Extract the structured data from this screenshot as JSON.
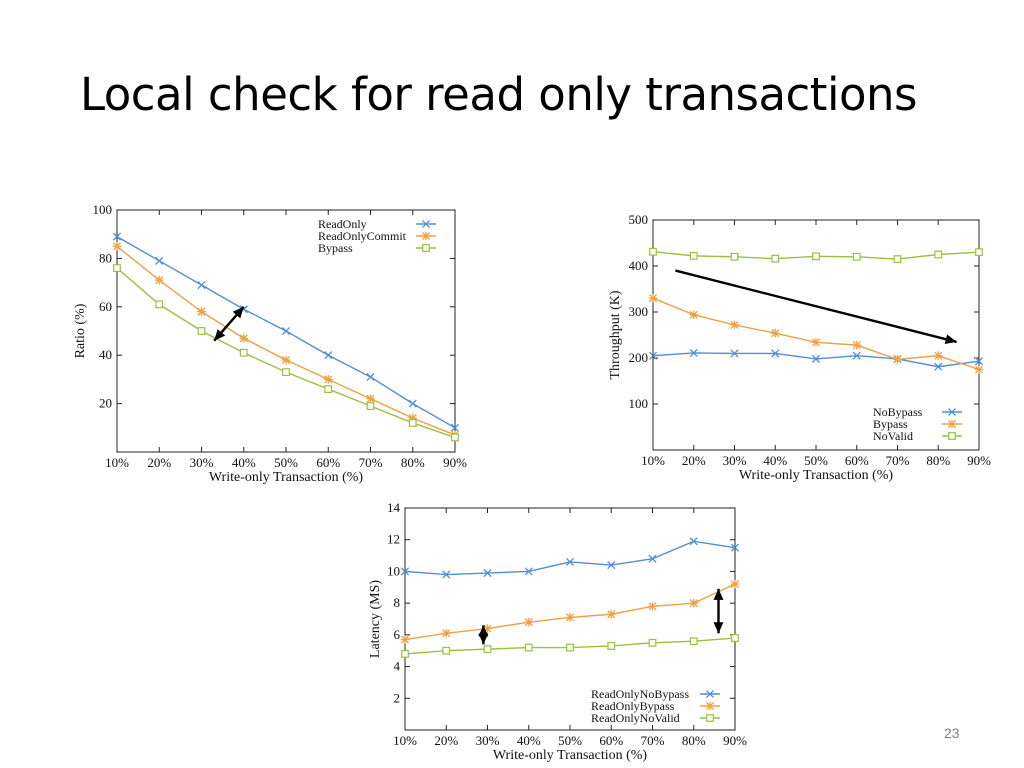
{
  "slide": {
    "title": "Local check for read only transactions",
    "page_number": "23"
  },
  "chart_data": [
    {
      "type": "line",
      "id": "ratio",
      "xlabel": "Write-only Transaction (%)",
      "ylabel": "Ratio (%)",
      "categories": [
        "10%",
        "20%",
        "30%",
        "40%",
        "50%",
        "60%",
        "70%",
        "80%",
        "90%"
      ],
      "ylim": [
        0,
        100
      ],
      "yticks": [
        20,
        40,
        60,
        80,
        100
      ],
      "legend_position": "top-right",
      "series": [
        {
          "name": "ReadOnly",
          "color": "#4e8fd6",
          "marker": "x",
          "values": [
            89,
            79,
            69,
            59,
            50,
            40,
            31,
            20,
            10
          ]
        },
        {
          "name": "ReadOnlyCommit",
          "color": "#f0a040",
          "marker": "star",
          "values": [
            85,
            71,
            58,
            47,
            38,
            30,
            22,
            14,
            7
          ]
        },
        {
          "name": "Bypass",
          "color": "#99c23c",
          "marker": "square",
          "values": [
            76,
            61,
            50,
            41,
            33,
            26,
            19,
            12,
            6
          ]
        }
      ],
      "annotations": [
        {
          "type": "double-arrow",
          "x1": 2.3,
          "y1": 46,
          "x2": 3,
          "y2": 60
        }
      ]
    },
    {
      "type": "line",
      "id": "throughput",
      "xlabel": "Write-only Transaction (%)",
      "ylabel": "Throughput (K)",
      "categories": [
        "10%",
        "20%",
        "30%",
        "40%",
        "50%",
        "60%",
        "70%",
        "80%",
        "90%"
      ],
      "ylim": [
        0,
        500
      ],
      "yticks": [
        100,
        200,
        300,
        400,
        500
      ],
      "legend_position": "bottom-right",
      "series": [
        {
          "name": "NoBypass",
          "color": "#4e8fd6",
          "marker": "x",
          "values": [
            205,
            211,
            210,
            210,
            198,
            205,
            198,
            181,
            193
          ]
        },
        {
          "name": "Bypass",
          "color": "#f0a040",
          "marker": "star",
          "values": [
            330,
            294,
            272,
            254,
            234,
            228,
            197,
            205,
            175
          ]
        },
        {
          "name": "NoValid",
          "color": "#99c23c",
          "marker": "square",
          "values": [
            431,
            422,
            420,
            416,
            421,
            420,
            415,
            425,
            430
          ]
        }
      ],
      "annotations": [
        {
          "type": "arrow",
          "x1": 0.55,
          "y1": 390,
          "x2": 7.45,
          "y2": 235
        }
      ]
    },
    {
      "type": "line",
      "id": "latency",
      "xlabel": "Write-only Transaction (%)",
      "ylabel": "Latency (MS)",
      "categories": [
        "10%",
        "20%",
        "30%",
        "40%",
        "50%",
        "60%",
        "70%",
        "80%",
        "90%"
      ],
      "ylim": [
        0,
        14
      ],
      "yticks": [
        2,
        4,
        6,
        8,
        10,
        12,
        14
      ],
      "legend_position": "bottom-right",
      "series": [
        {
          "name": "ReadOnlyNoBypass",
          "color": "#4e8fd6",
          "marker": "x",
          "values": [
            10.0,
            9.8,
            9.9,
            10.0,
            10.6,
            10.4,
            10.8,
            11.9,
            11.5
          ]
        },
        {
          "name": "ReadOnlyBypass",
          "color": "#f0a040",
          "marker": "star",
          "values": [
            5.7,
            6.1,
            6.4,
            6.8,
            7.1,
            7.3,
            7.8,
            8.0,
            9.2
          ]
        },
        {
          "name": "ReadOnlyNoValid",
          "color": "#99c23c",
          "marker": "square",
          "values": [
            4.8,
            5.0,
            5.1,
            5.2,
            5.2,
            5.3,
            5.5,
            5.6,
            5.8
          ]
        }
      ],
      "annotations": [
        {
          "type": "double-arrow",
          "x1": 1.9,
          "y1": 5.4,
          "x2": 1.9,
          "y2": 6.6
        },
        {
          "type": "double-arrow",
          "x1": 7.6,
          "y1": 6.1,
          "x2": 7.6,
          "y2": 8.9
        }
      ]
    }
  ]
}
